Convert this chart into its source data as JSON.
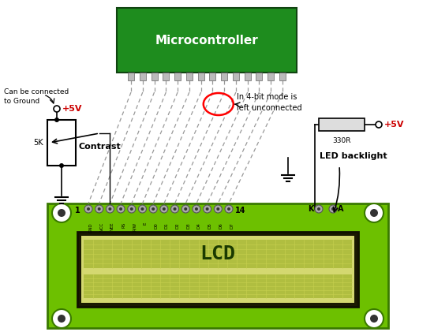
{
  "bg_color": "#ffffff",
  "mc_green": "#1e8c1e",
  "mc_label": "Microcontroller",
  "lcd_green": "#6dc000",
  "lcd_border": "#3a7a00",
  "lcd_screen_bg": "#d4d870",
  "lcd_screen_inner": "#c0cc50",
  "lcd_text": "LCD",
  "lcd_text_color": "#1a3a00",
  "red_color": "#cc0000",
  "black": "#000000",
  "gray_pin": "#aaaaaa",
  "gray_dark": "#666666",
  "white": "#ffffff",
  "label_5v_left": "+5V",
  "label_5v_right": "+5V",
  "label_5k": "5K",
  "label_contrast": "Contrast",
  "label_330r": "330R",
  "label_led": "LED backlight",
  "label_ground_note": "Can be connected\nto Ground",
  "label_4bit": "In 4-bit mode is\nleft unconnected",
  "label_1": "1",
  "label_14": "14",
  "label_k": "K",
  "label_a": "A",
  "pin_labels": [
    "GND",
    "VCC",
    "VEE",
    "RS",
    "R/W",
    "E",
    "D0",
    "D1",
    "D2",
    "D3",
    "D4",
    "D5",
    "D6",
    "D7"
  ]
}
